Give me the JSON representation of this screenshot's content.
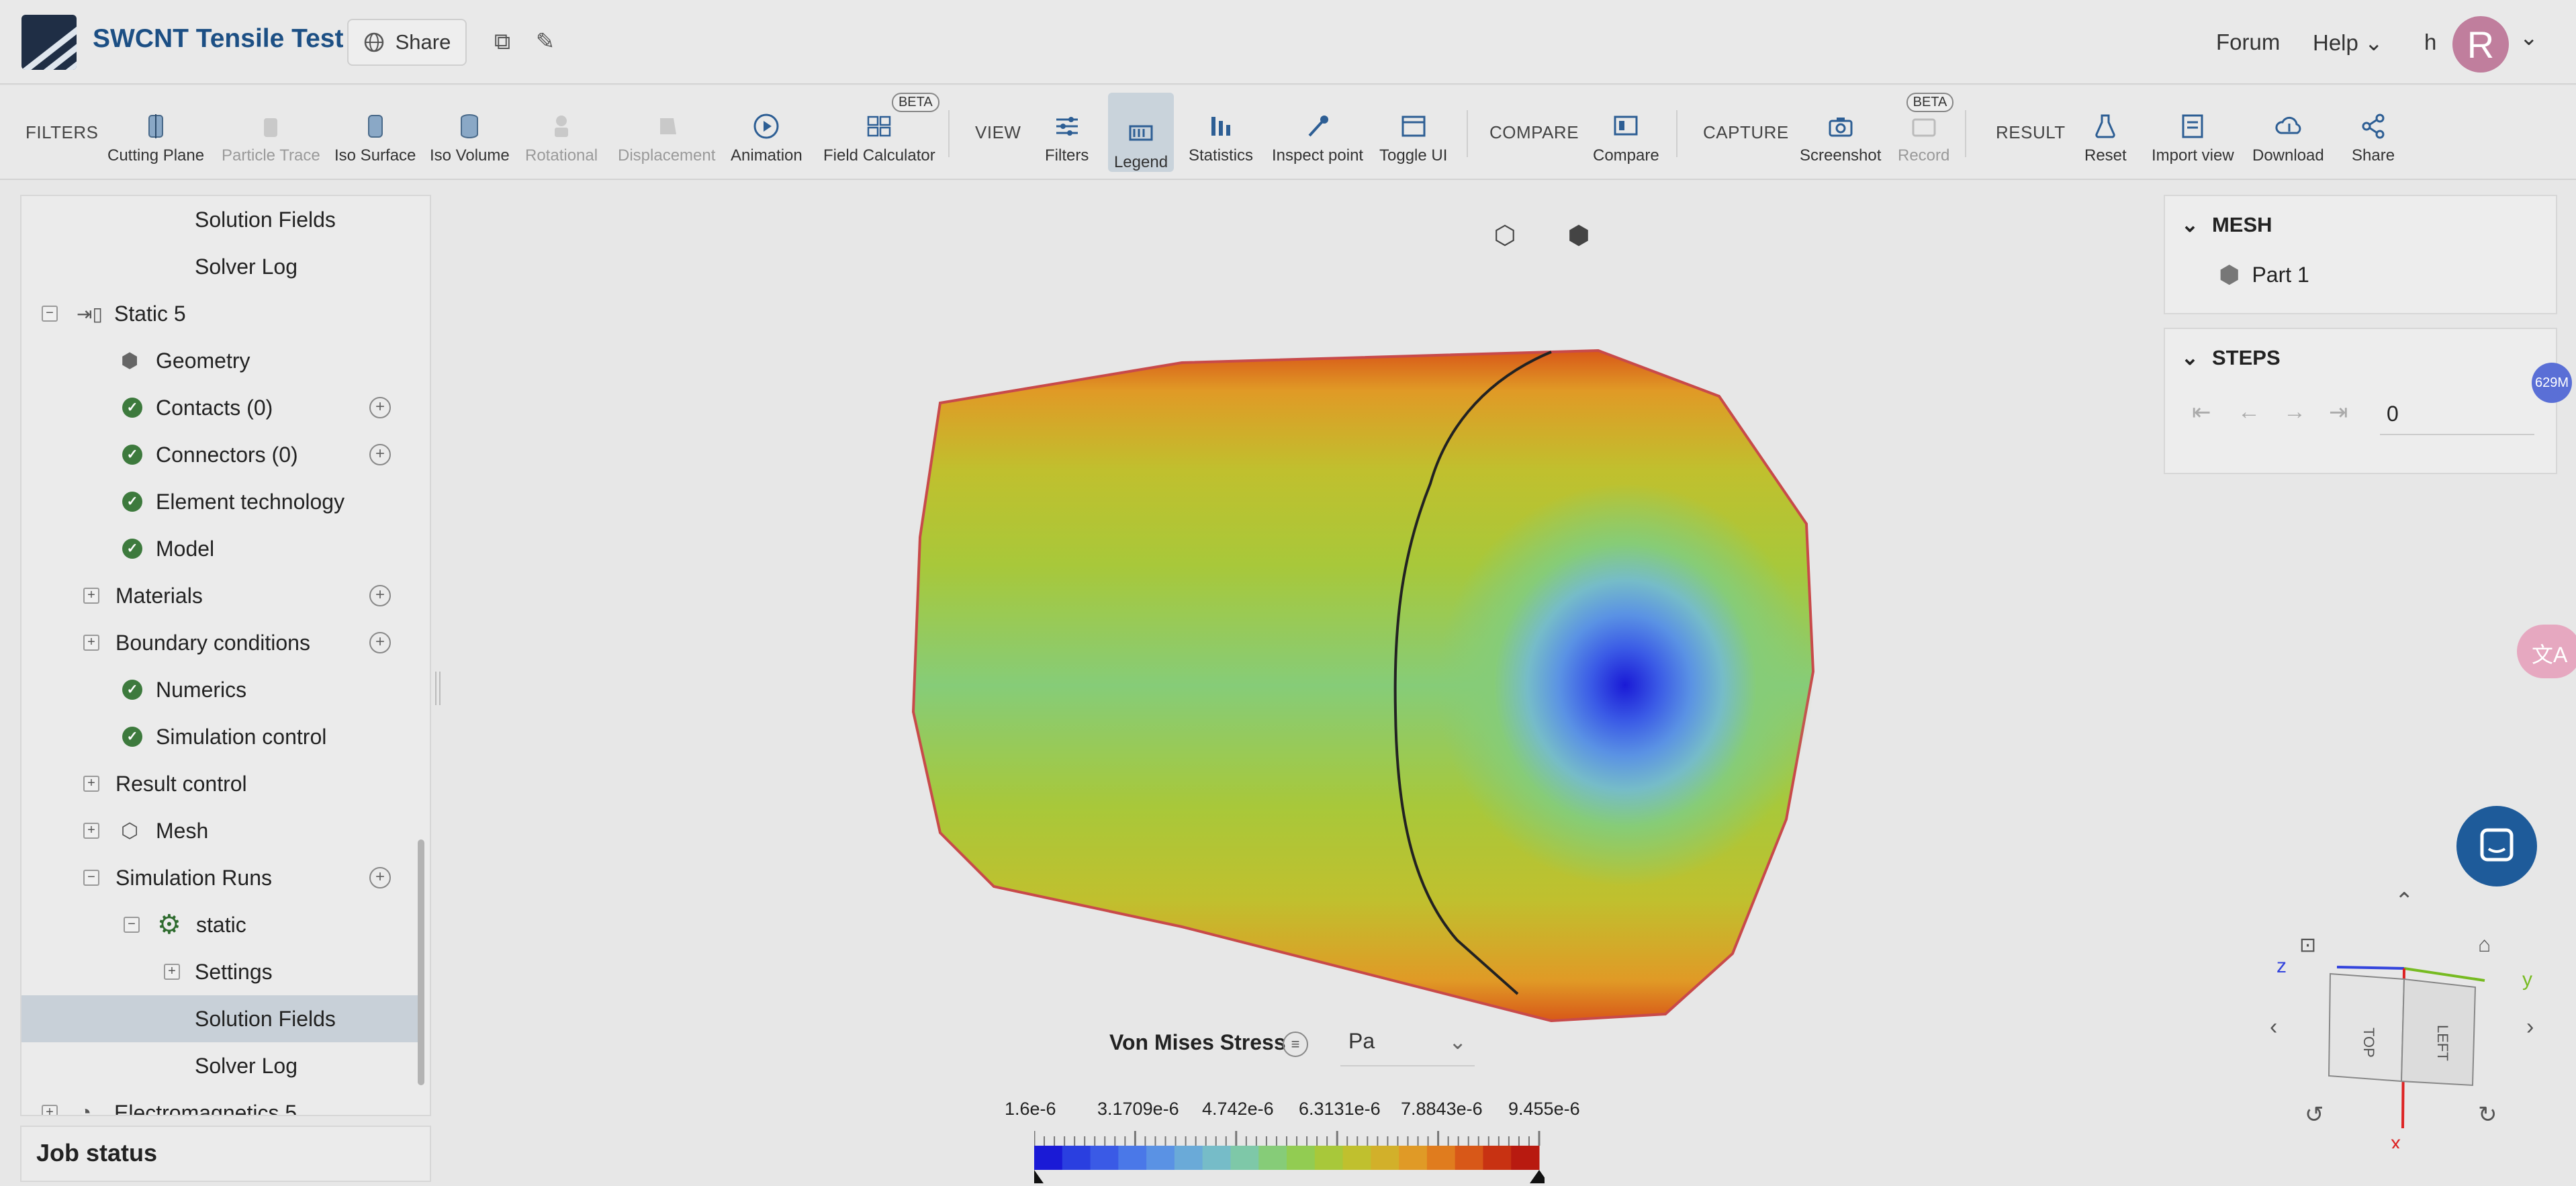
{
  "app": {
    "title": "SWCNT Tensile Test",
    "share_label": "Share",
    "forum_label": "Forum",
    "help_label": "Help",
    "user_short": "h",
    "avatar_letter": "R"
  },
  "toolbar": {
    "filters_label": "FILTERS",
    "filters": [
      {
        "label": "Cutting Plane",
        "icon": "cutting-plane-icon"
      },
      {
        "label": "Particle Trace",
        "icon": "particle-trace-icon"
      },
      {
        "label": "Iso Surface",
        "icon": "iso-surface-icon"
      },
      {
        "label": "Iso Volume",
        "icon": "iso-volume-icon"
      },
      {
        "label": "Rotational",
        "icon": "rotational-icon"
      },
      {
        "label": "Displacement",
        "icon": "displacement-icon"
      },
      {
        "label": "Animation",
        "icon": "play-icon"
      },
      {
        "label": "Field Calculator",
        "icon": "calculator-icon",
        "badge": "BETA"
      }
    ],
    "view_label": "VIEW",
    "view": [
      {
        "label": "Filters",
        "icon": "sliders-icon"
      },
      {
        "label": "Legend",
        "icon": "legend-icon"
      },
      {
        "label": "Statistics",
        "icon": "statistics-icon"
      },
      {
        "label": "Inspect point",
        "icon": "eyedropper-icon"
      },
      {
        "label": "Toggle UI",
        "icon": "window-icon"
      }
    ],
    "compare_label": "COMPARE",
    "compare": [
      {
        "label": "Compare",
        "icon": "compare-icon"
      }
    ],
    "capture_label": "CAPTURE",
    "capture": [
      {
        "label": "Screenshot",
        "icon": "camera-icon"
      },
      {
        "label": "Record",
        "icon": "record-icon",
        "badge": "BETA"
      }
    ],
    "result_label": "RESULT",
    "result": [
      {
        "label": "Reset",
        "icon": "flask-icon"
      },
      {
        "label": "Import view",
        "icon": "import-icon"
      },
      {
        "label": "Download",
        "icon": "download-cloud-icon"
      },
      {
        "label": "Share",
        "icon": "share-icon"
      }
    ]
  },
  "tree": {
    "rows": [
      {
        "label": "Solution Fields"
      },
      {
        "label": "Solver Log"
      },
      {
        "label": "Static 5"
      },
      {
        "label": "Geometry"
      },
      {
        "label": "Contacts (0)"
      },
      {
        "label": "Connectors (0)"
      },
      {
        "label": "Element technology"
      },
      {
        "label": "Model"
      },
      {
        "label": "Materials"
      },
      {
        "label": "Boundary conditions"
      },
      {
        "label": "Numerics"
      },
      {
        "label": "Simulation control"
      },
      {
        "label": "Result control"
      },
      {
        "label": "Mesh"
      },
      {
        "label": "Simulation Runs"
      },
      {
        "label": "static"
      },
      {
        "label": "Settings"
      },
      {
        "label": "Solution Fields"
      },
      {
        "label": "Solver Log"
      },
      {
        "label": "Electromagnetics 5"
      }
    ],
    "job_status": "Job status"
  },
  "right_panel": {
    "mesh_title": "MESH",
    "part_label": "Part 1",
    "steps_title": "STEPS",
    "step_value": "0"
  },
  "legend": {
    "title": "Von Mises Stress",
    "unit": "Pa",
    "ticks": [
      "1.6e-6",
      "3.1709e-6",
      "4.742e-6",
      "6.3131e-6",
      "7.8843e-6",
      "9.455e-6"
    ],
    "colors": [
      "#1a1ad6",
      "#2a3fe0",
      "#3a5ae6",
      "#4a78e8",
      "#5a92e4",
      "#6aaad8",
      "#76bcc8",
      "#7ec8a8",
      "#86cc78",
      "#92cc52",
      "#a8c83a",
      "#c0c02e",
      "#d2b02a",
      "#e09a26",
      "#e07c1e",
      "#d85818",
      "#c83212",
      "#b81a10"
    ]
  },
  "misc": {
    "memory_badge": "629M",
    "axis_z": "z",
    "axis_y": "y",
    "axis_x": "x",
    "cube_top": "TOP",
    "cube_left": "LEFT"
  }
}
